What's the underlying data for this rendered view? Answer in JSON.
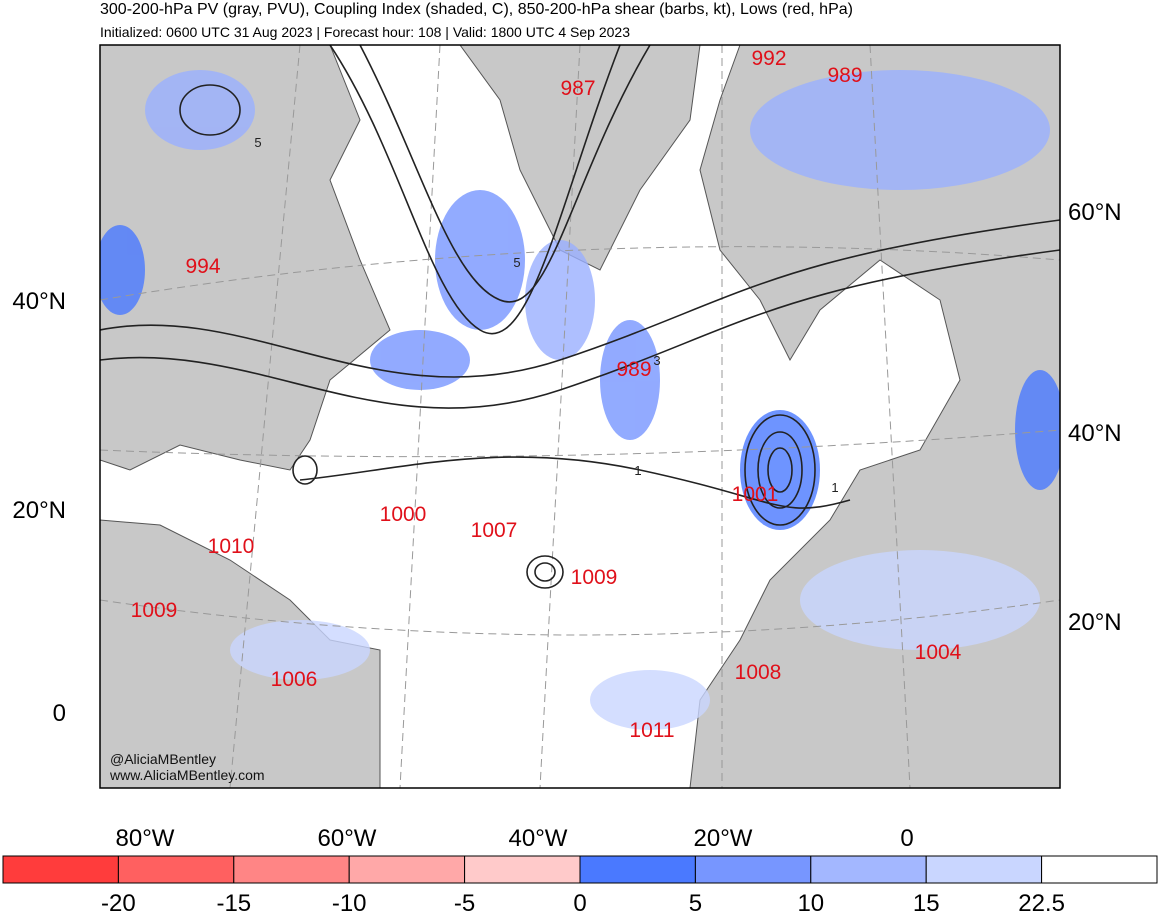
{
  "header": {
    "title": "300-200-hPa PV (gray, PVU), Coupling Index (shaded, C), 850-200-hPa shear (barbs, kt), Lows (red, hPa)",
    "subtitle": "Initialized: 0600 UTC 31 Aug 2023 | Forecast hour: 108 | Valid: 1800 UTC 4 Sep 2023"
  },
  "axes": {
    "left": [
      "40°N",
      "20°N",
      "0"
    ],
    "right": [
      "60°N",
      "40°N",
      "20°N"
    ],
    "bottom": [
      "80°W",
      "60°W",
      "40°W",
      "20°W",
      "0"
    ]
  },
  "lows": [
    994,
    987,
    992,
    989,
    989,
    1000,
    1007,
    1009,
    1010,
    1009,
    1006,
    1001,
    1008,
    1011,
    1004
  ],
  "contour_labels": [
    "5",
    "5",
    "3",
    "1",
    "1"
  ],
  "credits": [
    "@AliciaMBentley",
    "www.AliciaMBentley.com"
  ],
  "colorbar": {
    "ticks": [
      -20,
      -15,
      -10,
      -5,
      0,
      5,
      10,
      15,
      22.5
    ],
    "colors": [
      "#ff3c3c",
      "#ff6060",
      "#ff8585",
      "#ffa8a8",
      "#ffcaca",
      "#4a79ff",
      "#7796ff",
      "#a3b7ff",
      "#c9d6ff",
      "#ffffff"
    ]
  }
}
